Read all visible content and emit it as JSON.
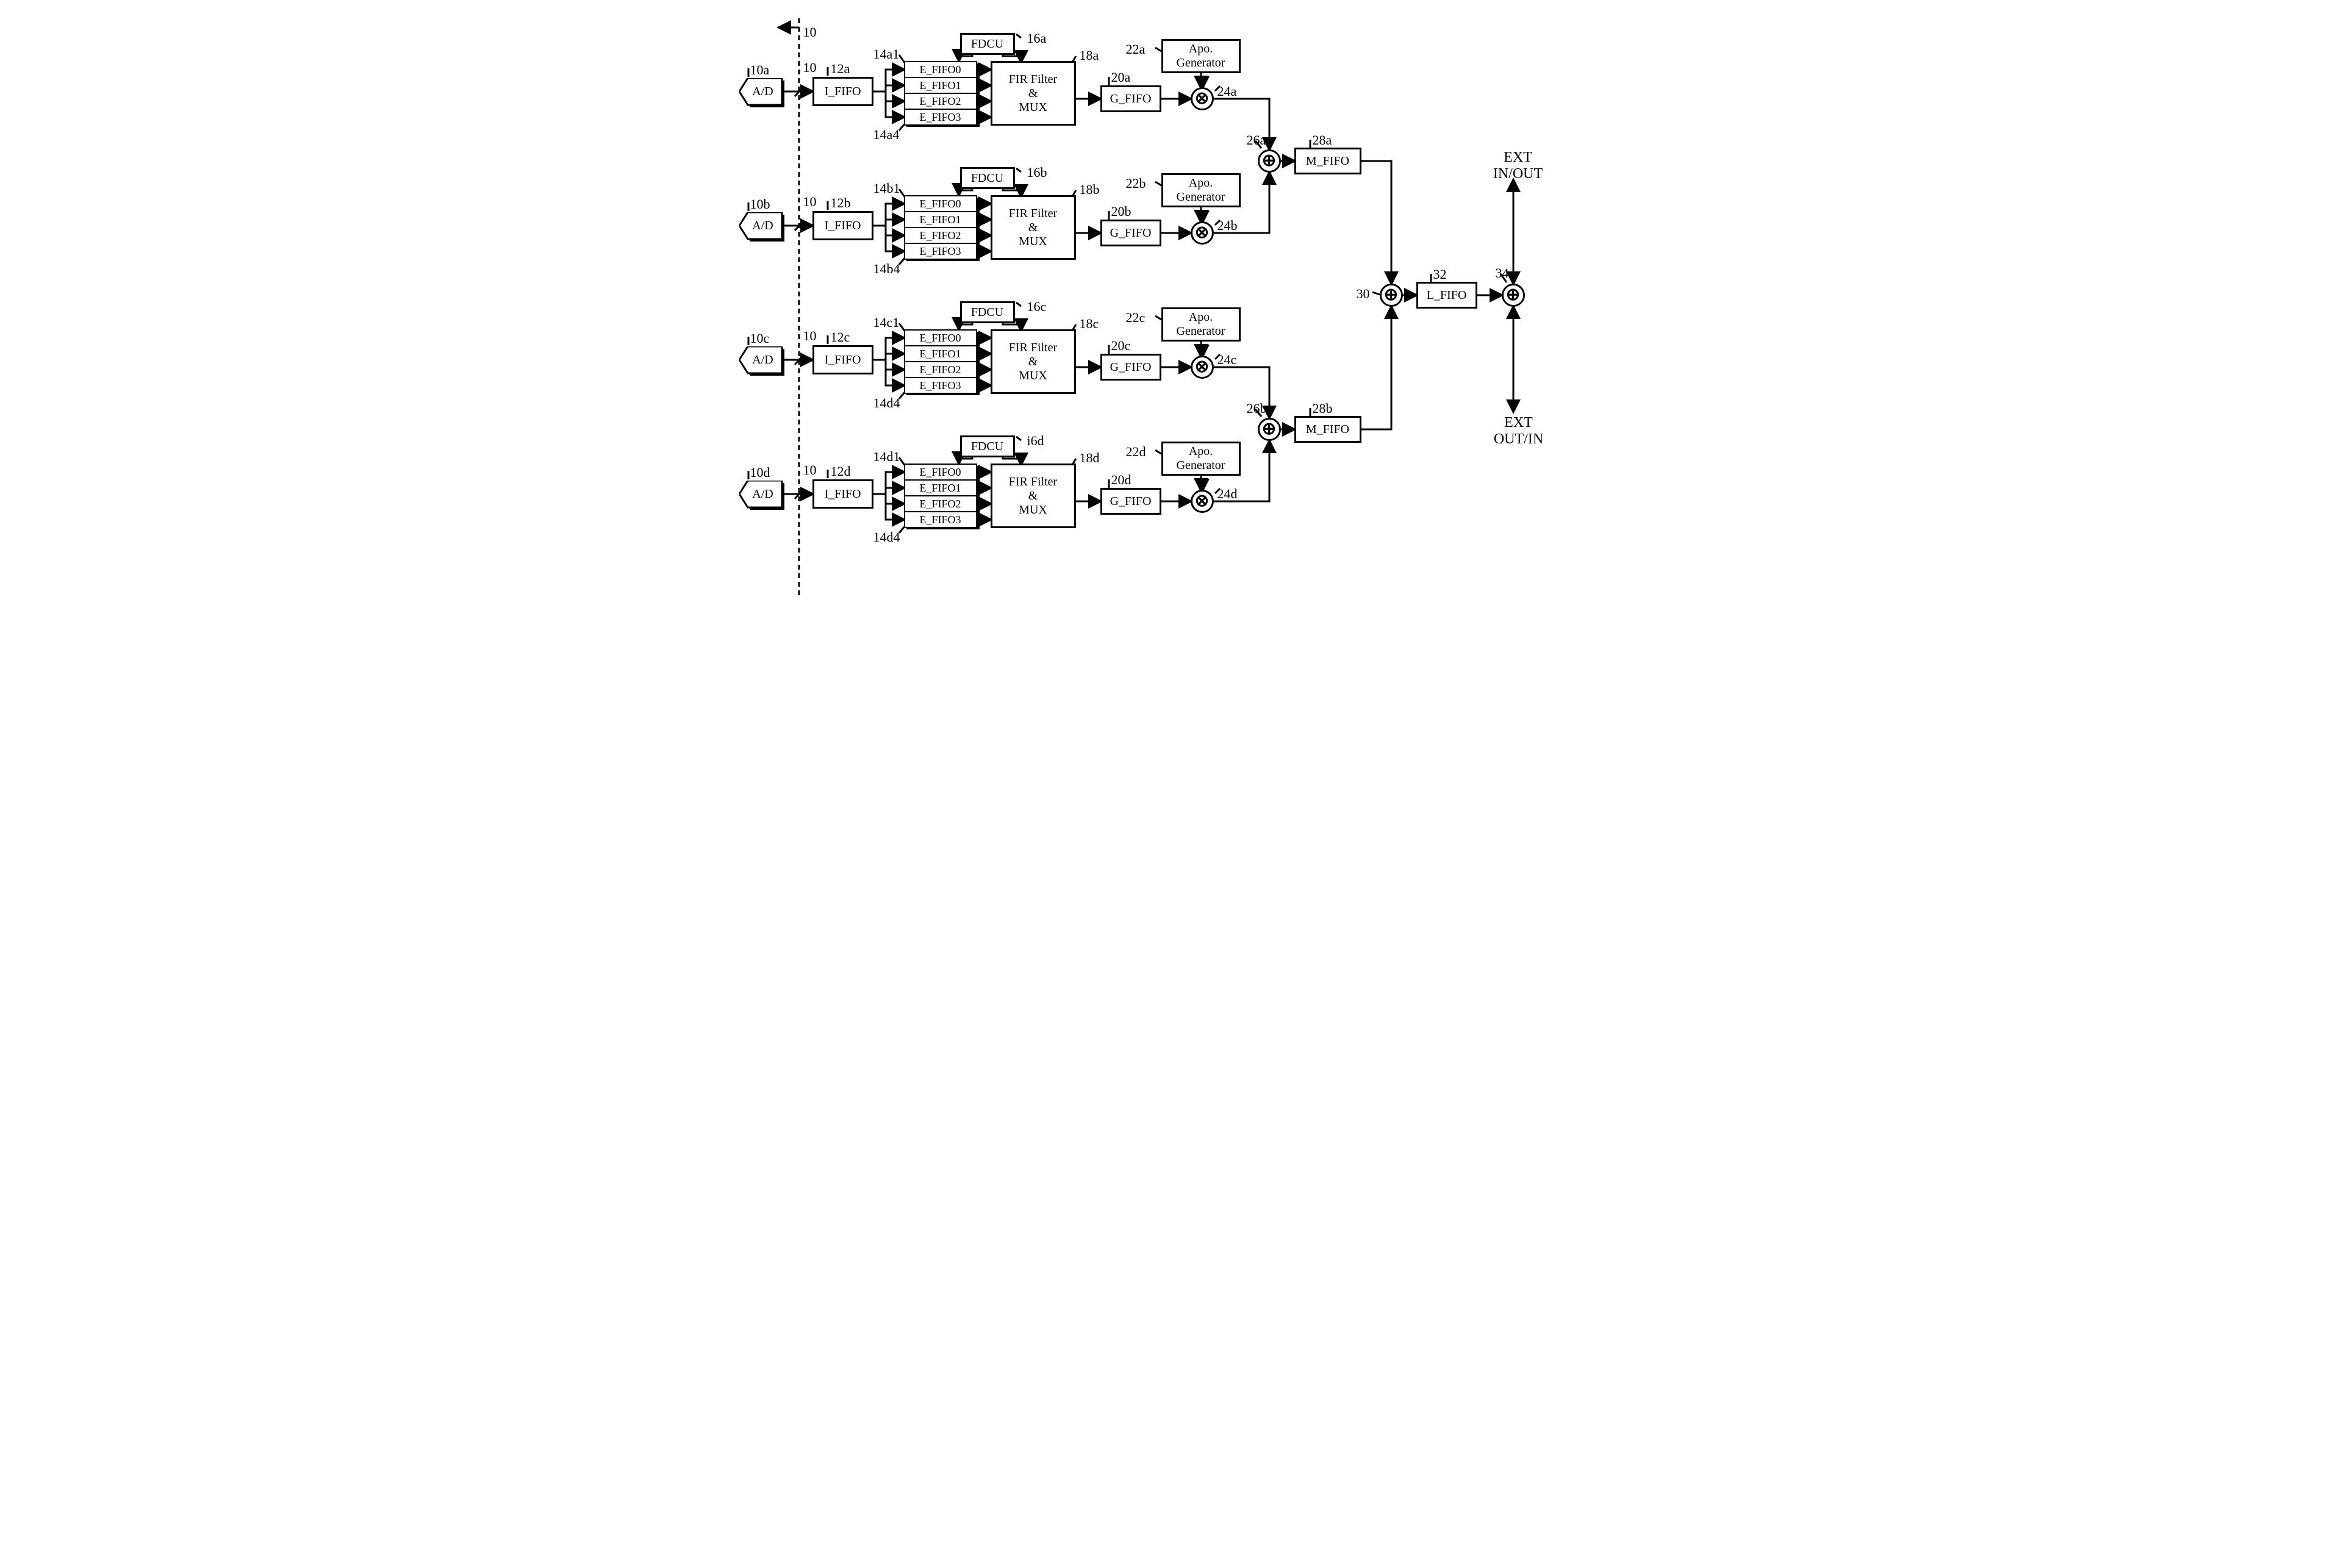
{
  "diagram_type": "block-diagram",
  "background_color": "#ffffff",
  "stroke_color": "#000000",
  "stroke_width": 3,
  "font_family": "Times New Roman",
  "label_fontsize": 22,
  "box_fontsize": 20,
  "blocks": {
    "ad": "A/D",
    "i_fifo": "I_FIFO",
    "fdcu": "FDCU",
    "e_fifo": [
      "E_FIFO0",
      "E_FIFO1",
      "E_FIFO2",
      "E_FIFO3"
    ],
    "fir": "FIR Filter\n&\nMUX",
    "g_fifo": "G_FIFO",
    "apo": "Apo.\nGenerator",
    "m_fifo": "M_FIFO",
    "l_fifo": "L_FIFO"
  },
  "ops": {
    "mult": "⊗",
    "sum": "⊕"
  },
  "ext_labels": {
    "top": "EXT\nIN/OUT",
    "bottom": "EXT\nOUT/IN"
  },
  "refs": {
    "boundary": "10",
    "ad": [
      "10a",
      "10b",
      "10c",
      "10d"
    ],
    "if": [
      "12a",
      "12b",
      "12c",
      "12d"
    ],
    "ef1": [
      "14a1",
      "14b1",
      "14c1",
      "14d1"
    ],
    "ef4": [
      "14a4",
      "14b4",
      "14d4",
      "14d4"
    ],
    "fdcu": [
      "16a",
      "16b",
      "16c",
      "i6d"
    ],
    "fir": [
      "18a",
      "18b",
      "18c",
      "18d"
    ],
    "gf": [
      "20a",
      "20b",
      "20c",
      "20d"
    ],
    "apo": [
      "22a",
      "22b",
      "22c",
      "22d"
    ],
    "mult": [
      "24a",
      "24b",
      "24c",
      "24d"
    ],
    "sum_pair": [
      "26a",
      "26b"
    ],
    "mf": [
      "28a",
      "28b"
    ],
    "sum_all": "30",
    "lf": "32",
    "ext_sum": "34"
  },
  "channel_y": [
    60,
    280,
    500,
    720
  ],
  "channel_labels": [
    "a",
    "b",
    "c",
    "d"
  ]
}
